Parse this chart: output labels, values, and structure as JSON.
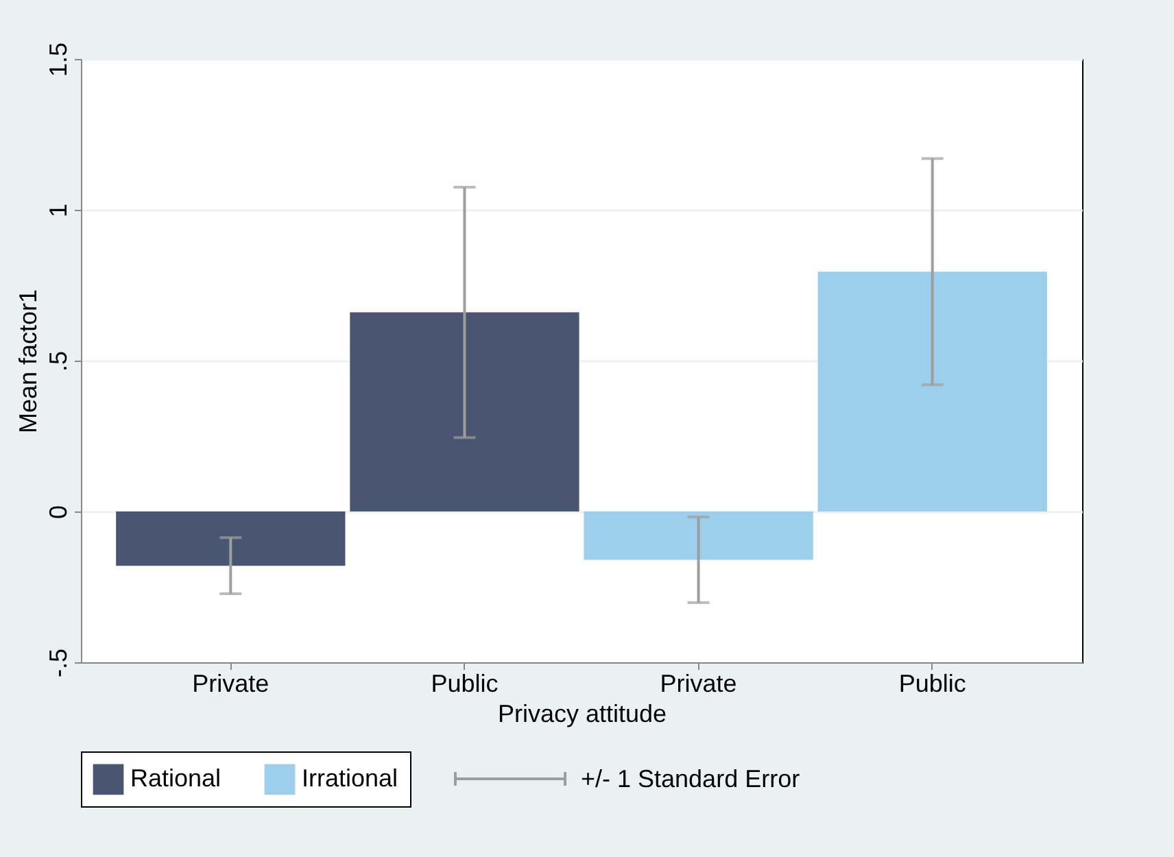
{
  "chart_data": {
    "type": "bar",
    "xlabel": "Privacy attitude",
    "ylabel": "Mean factor1",
    "categories": [
      "Private",
      "Public",
      "Private",
      "Public"
    ],
    "series": [
      {
        "name": "Rational",
        "color": "#4a5571",
        "values": [
          -0.18,
          0.66,
          null,
          null
        ],
        "errors": [
          0.093,
          0.415,
          null,
          null
        ]
      },
      {
        "name": "Irrational",
        "color": "#9dcfec",
        "values": [
          null,
          null,
          -0.16,
          0.795
        ],
        "errors": [
          null,
          null,
          0.142,
          0.375
        ]
      }
    ],
    "ylim": [
      -0.5,
      1.5
    ],
    "yticks": [
      {
        "value": -0.5,
        "label": "-.5"
      },
      0,
      {
        "value": 0.5,
        "label": ".5"
      },
      1,
      {
        "value": 1.5,
        "label": "1.5"
      }
    ],
    "grid": "y",
    "legend": "bottom",
    "annotations": [
      "+/- 1 Standard Error"
    ]
  }
}
